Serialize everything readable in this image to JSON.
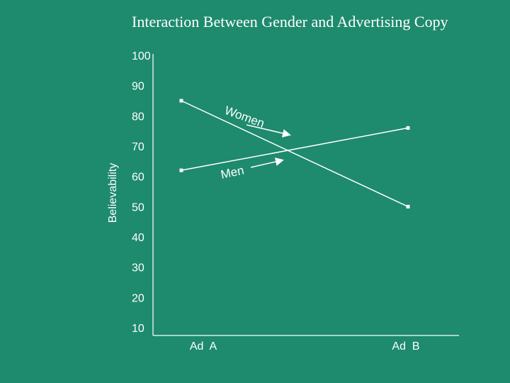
{
  "chart_data": {
    "type": "line",
    "title": "Interaction Between Gender and Advertising Copy",
    "ylabel": "Believability",
    "xlabel": "",
    "categories": [
      "Ad  A",
      "Ad  B"
    ],
    "yticks": [
      100,
      90,
      80,
      70,
      60,
      50,
      40,
      30,
      20,
      10
    ],
    "ylim": [
      10,
      100
    ],
    "grid": false,
    "series": [
      {
        "name": "Women",
        "values": [
          85,
          50
        ]
      },
      {
        "name": "Men",
        "values": [
          62,
          76
        ]
      }
    ],
    "colors": {
      "background": "#1e8a6e",
      "line": "#ffffff"
    }
  }
}
